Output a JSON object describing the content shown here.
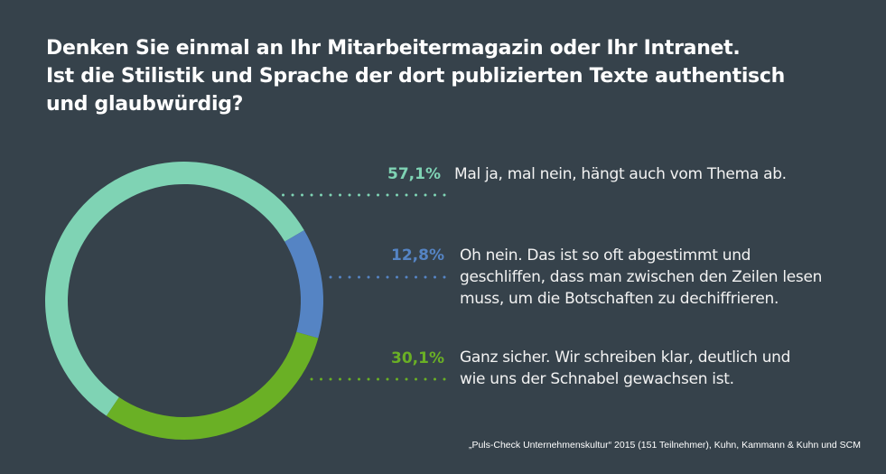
{
  "title_lines": [
    "Denken Sie einmal an Ihr Mitarbeitermagazin oder Ihr Intranet.",
    "Ist die Stilistik und Sprache der dort publizierten Texte authentisch",
    "und glaubwürdig?"
  ],
  "chart_data": {
    "type": "pie",
    "variant": "donut",
    "title": "Denken Sie einmal an Ihr Mitarbeitermagazin oder Ihr Intranet. Ist die Stilistik und Sprache der dort publizierten Texte authentisch und glaubwürdig?",
    "unit": "%",
    "slices": [
      {
        "label_pct": "57,1%",
        "value": 57.1,
        "color": "#7fd3b4",
        "lines": [
          "Mal ja, mal nein, hängt auch vom Thema ab."
        ]
      },
      {
        "label_pct": "12,8%",
        "value": 12.8,
        "color": "#5584c4",
        "lines": [
          "Oh nein. Das ist so oft abgestimmt und",
          "geschliffen, dass man zwischen den Zeilen lesen",
          "muss, um die Botschaften zu dechiffrieren."
        ]
      },
      {
        "label_pct": "30,1%",
        "value": 30.1,
        "color": "#6ab025",
        "lines": [
          "Ganz sicher. Wir schreiben klar, deutlich und",
          "wie uns der Schnabel gewachsen ist."
        ]
      }
    ],
    "start_angle_deg": 214,
    "legend": "right"
  },
  "source": "„Puls-Check Unternehmenskultur“ 2015 (151 Teilnehmer), Kuhn, Kammann & Kuhn und SCM"
}
